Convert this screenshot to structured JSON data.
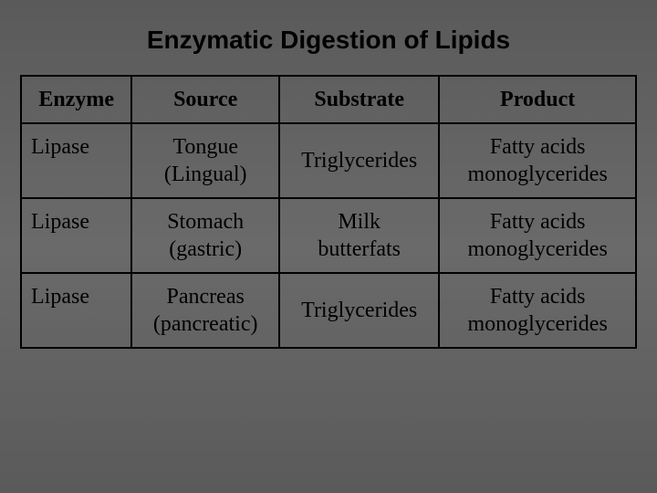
{
  "title": "Enzymatic Digestion of Lipids",
  "title_fontsize": 28,
  "cell_fontsize": 24,
  "background_gradient": [
    "#5a5a5a",
    "#6a6a6a",
    "#5a5a5a"
  ],
  "border_color": "#000000",
  "text_color": "#000000",
  "table": {
    "columns": [
      "Enzyme",
      "Source",
      "Substrate",
      "Product"
    ],
    "column_widths_pct": [
      18,
      24,
      26,
      32
    ],
    "rows": [
      {
        "enzyme": "Lipase",
        "source_line1": "Tongue",
        "source_line2": "(Lingual)",
        "substrate_line1": "Triglycerides",
        "substrate_line2": "",
        "product_line1": "Fatty acids",
        "product_line2": "monoglycerides"
      },
      {
        "enzyme": "Lipase",
        "source_line1": "Stomach",
        "source_line2": "(gastric)",
        "substrate_line1": "Milk",
        "substrate_line2": "butterfats",
        "product_line1": "Fatty acids",
        "product_line2": "monoglycerides"
      },
      {
        "enzyme": "Lipase",
        "source_line1": "Pancreas",
        "source_line2": "(pancreatic)",
        "substrate_line1": "Triglycerides",
        "substrate_line2": "",
        "product_line1": "Fatty acids",
        "product_line2": "monoglycerides"
      }
    ]
  }
}
